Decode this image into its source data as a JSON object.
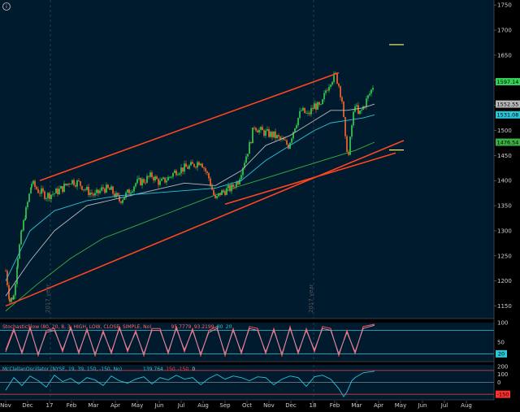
{
  "chart_data": [
    {
      "type": "line",
      "panel": "price",
      "y_ticks": [
        1150,
        1200,
        1250,
        1300,
        1350,
        1400,
        1450,
        1500,
        1550,
        1600,
        1650,
        1700,
        1750
      ],
      "ylim": [
        1125,
        1760
      ],
      "x_months": [
        "Nov",
        "Dec",
        "17",
        "Feb",
        "Mar",
        "Apr",
        "May",
        "Jun",
        "Jul",
        "Aug",
        "Sep",
        "Oct",
        "Nov",
        "Dec",
        "18",
        "Feb",
        "Mar",
        "Apr",
        "May",
        "Jun",
        "Jul",
        "Aug"
      ],
      "year_markers": [
        "2017 year",
        "2017 year"
      ],
      "price_badges": [
        {
          "value": "1597.14",
          "y": 1597.14,
          "color": "#34d058"
        },
        {
          "value": "1552.55",
          "y": 1552.55,
          "color": "#b8b8b8"
        },
        {
          "value": "1531.08",
          "y": 1531.08,
          "color": "#29c5d8"
        },
        {
          "value": "1476.54",
          "y": 1476.54,
          "color": "#3cb043"
        }
      ],
      "series": [
        {
          "style": "candles",
          "x": [
            0,
            5,
            10,
            15,
            20,
            25,
            32,
            40,
            50,
            60,
            70,
            80,
            90,
            100,
            110,
            120,
            130,
            140,
            150,
            160,
            170,
            180,
            190,
            200,
            210,
            220,
            230,
            240,
            250,
            258,
            264,
            270,
            278,
            286,
            294,
            300,
            306,
            312,
            320,
            330,
            340,
            348,
            356,
            364,
            372,
            380,
            388,
            394,
            400,
            406,
            410,
            414,
            418,
            422,
            426,
            430,
            434,
            438,
            444,
            450,
            454
          ],
          "y": [
            1220,
            1160,
            1170,
            1250,
            1300,
            1340,
            1395,
            1380,
            1370,
            1375,
            1385,
            1400,
            1395,
            1380,
            1370,
            1385,
            1380,
            1360,
            1375,
            1395,
            1400,
            1410,
            1395,
            1405,
            1420,
            1425,
            1430,
            1440,
            1405,
            1360,
            1375,
            1380,
            1385,
            1400,
            1440,
            1470,
            1510,
            1500,
            1495,
            1490,
            1480,
            1470,
            1510,
            1540,
            1530,
            1550,
            1545,
            1580,
            1600,
            1610,
            1590,
            1560,
            1480,
            1450,
            1510,
            1555,
            1530,
            1540,
            1560,
            1580,
            1597.14
          ]
        },
        {
          "name": "",
          "color": "#b8b8b8",
          "x": [
            0,
            30,
            60,
            100,
            140,
            180,
            220,
            258,
            290,
            320,
            350,
            380,
            400,
            420,
            440,
            454
          ],
          "y": [
            1170,
            1240,
            1300,
            1350,
            1365,
            1380,
            1395,
            1390,
            1420,
            1470,
            1490,
            1520,
            1540,
            1540,
            1545,
            1552.55
          ]
        },
        {
          "name": "",
          "color": "#29c5d8",
          "x": [
            0,
            30,
            60,
            100,
            140,
            180,
            220,
            258,
            290,
            320,
            350,
            380,
            400,
            420,
            440,
            454
          ],
          "y": [
            1200,
            1300,
            1340,
            1360,
            1370,
            1375,
            1380,
            1385,
            1400,
            1440,
            1470,
            1500,
            1515,
            1520,
            1525,
            1531.08
          ]
        },
        {
          "name": "",
          "color": "#3cb043",
          "x": [
            0,
            40,
            80,
            120,
            160,
            200,
            240,
            280,
            320,
            360,
            400,
            430,
            454
          ],
          "y": [
            1140,
            1195,
            1245,
            1285,
            1310,
            1335,
            1360,
            1385,
            1405,
            1425,
            1445,
            1460,
            1476.54
          ]
        },
        {
          "name": "",
          "color": "#ff4520",
          "x": [
            42,
            410
          ],
          "y": [
            1400,
            1615
          ]
        },
        {
          "name": "",
          "color": "#ff4520",
          "x": [
            0,
            490
          ],
          "y": [
            1150,
            1480
          ]
        },
        {
          "name": "",
          "color": "#ff4520",
          "x": [
            270,
            480
          ],
          "y": [
            1353,
            1455
          ]
        }
      ],
      "horizontal_markers": [
        {
          "x": [
            472,
            490
          ],
          "y": 1671,
          "color": "#ffff66"
        },
        {
          "x": [
            472,
            490
          ],
          "y": 1461,
          "color": "#ffff66"
        }
      ]
    },
    {
      "type": "line",
      "panel": "stochastic",
      "legend": [
        "StochasticSlow (80, 20, 8, 3, HIGH, LOW, CLOSE, SIMPLE, No)",
        "95.7779",
        "93.2199",
        "80",
        "20"
      ],
      "legend_colors": [
        "#ff6a6a",
        "#ff6a6a",
        "#ff6a6a",
        "#29c5d8",
        "#29c5d8"
      ],
      "ylim": [
        0,
        100
      ],
      "y_ticks": [
        100,
        50
      ],
      "overbought": 80,
      "oversold": 20,
      "badge": "20",
      "series": [
        {
          "name": "",
          "color": "#ff5a5a",
          "x": [
            0,
            10,
            20,
            30,
            40,
            50,
            60,
            70,
            80,
            90,
            100,
            110,
            120,
            130,
            140,
            150,
            160,
            170,
            180,
            190,
            200,
            210,
            220,
            230,
            240,
            250,
            260,
            270,
            280,
            290,
            300,
            310,
            320,
            330,
            340,
            350,
            360,
            370,
            380,
            390,
            400,
            410,
            420,
            430,
            440,
            454
          ],
          "y": [
            30,
            85,
            20,
            90,
            15,
            80,
            85,
            25,
            90,
            20,
            85,
            15,
            80,
            20,
            90,
            25,
            80,
            15,
            85,
            85,
            20,
            90,
            25,
            85,
            15,
            80,
            90,
            15,
            85,
            20,
            90,
            85,
            20,
            85,
            15,
            90,
            20,
            85,
            25,
            90,
            85,
            15,
            80,
            20,
            90,
            95.78
          ]
        },
        {
          "name": "",
          "color": "#d08aa8",
          "x": [
            0,
            10,
            20,
            30,
            40,
            50,
            60,
            70,
            80,
            90,
            100,
            110,
            120,
            130,
            140,
            150,
            160,
            170,
            180,
            190,
            200,
            210,
            220,
            230,
            240,
            250,
            260,
            270,
            280,
            290,
            300,
            310,
            320,
            330,
            340,
            350,
            360,
            370,
            380,
            390,
            400,
            410,
            420,
            430,
            440,
            454
          ],
          "y": [
            25,
            80,
            25,
            85,
            20,
            75,
            80,
            30,
            85,
            25,
            80,
            20,
            75,
            25,
            85,
            30,
            75,
            20,
            80,
            80,
            25,
            85,
            30,
            80,
            20,
            75,
            85,
            20,
            80,
            25,
            85,
            80,
            25,
            80,
            20,
            85,
            25,
            80,
            30,
            85,
            80,
            20,
            75,
            25,
            85,
            93.22
          ]
        }
      ]
    },
    {
      "type": "line",
      "panel": "mcclellan",
      "legend": [
        "McClellanOscillator (NYSE, 19, 39, 150, -150, No)",
        "139.764",
        "150",
        "-150",
        "0"
      ],
      "legend_colors": [
        "#29c5d8",
        "#29c5d8",
        "#ff4040",
        "#ff4040",
        "#cfcfcf"
      ],
      "ylim": [
        -220,
        220
      ],
      "y_ticks": [
        200,
        100,
        0
      ],
      "upper": 150,
      "lower": -150,
      "badge": "-150",
      "series": [
        {
          "name": "",
          "color": "#29c5d8",
          "x": [
            0,
            10,
            20,
            30,
            40,
            50,
            60,
            70,
            80,
            90,
            100,
            110,
            120,
            130,
            140,
            150,
            160,
            170,
            180,
            190,
            200,
            210,
            220,
            230,
            240,
            250,
            260,
            270,
            280,
            290,
            300,
            310,
            320,
            330,
            340,
            350,
            360,
            370,
            380,
            390,
            400,
            410,
            416,
            420,
            426,
            430,
            440,
            454
          ],
          "y": [
            -100,
            60,
            -40,
            80,
            20,
            -60,
            90,
            10,
            50,
            -20,
            60,
            30,
            -40,
            80,
            20,
            -10,
            40,
            70,
            -20,
            60,
            30,
            90,
            40,
            60,
            -30,
            50,
            100,
            40,
            80,
            60,
            20,
            70,
            60,
            -30,
            40,
            80,
            60,
            -50,
            70,
            90,
            40,
            -80,
            -180,
            -120,
            20,
            60,
            120,
            139.76
          ]
        }
      ]
    }
  ]
}
